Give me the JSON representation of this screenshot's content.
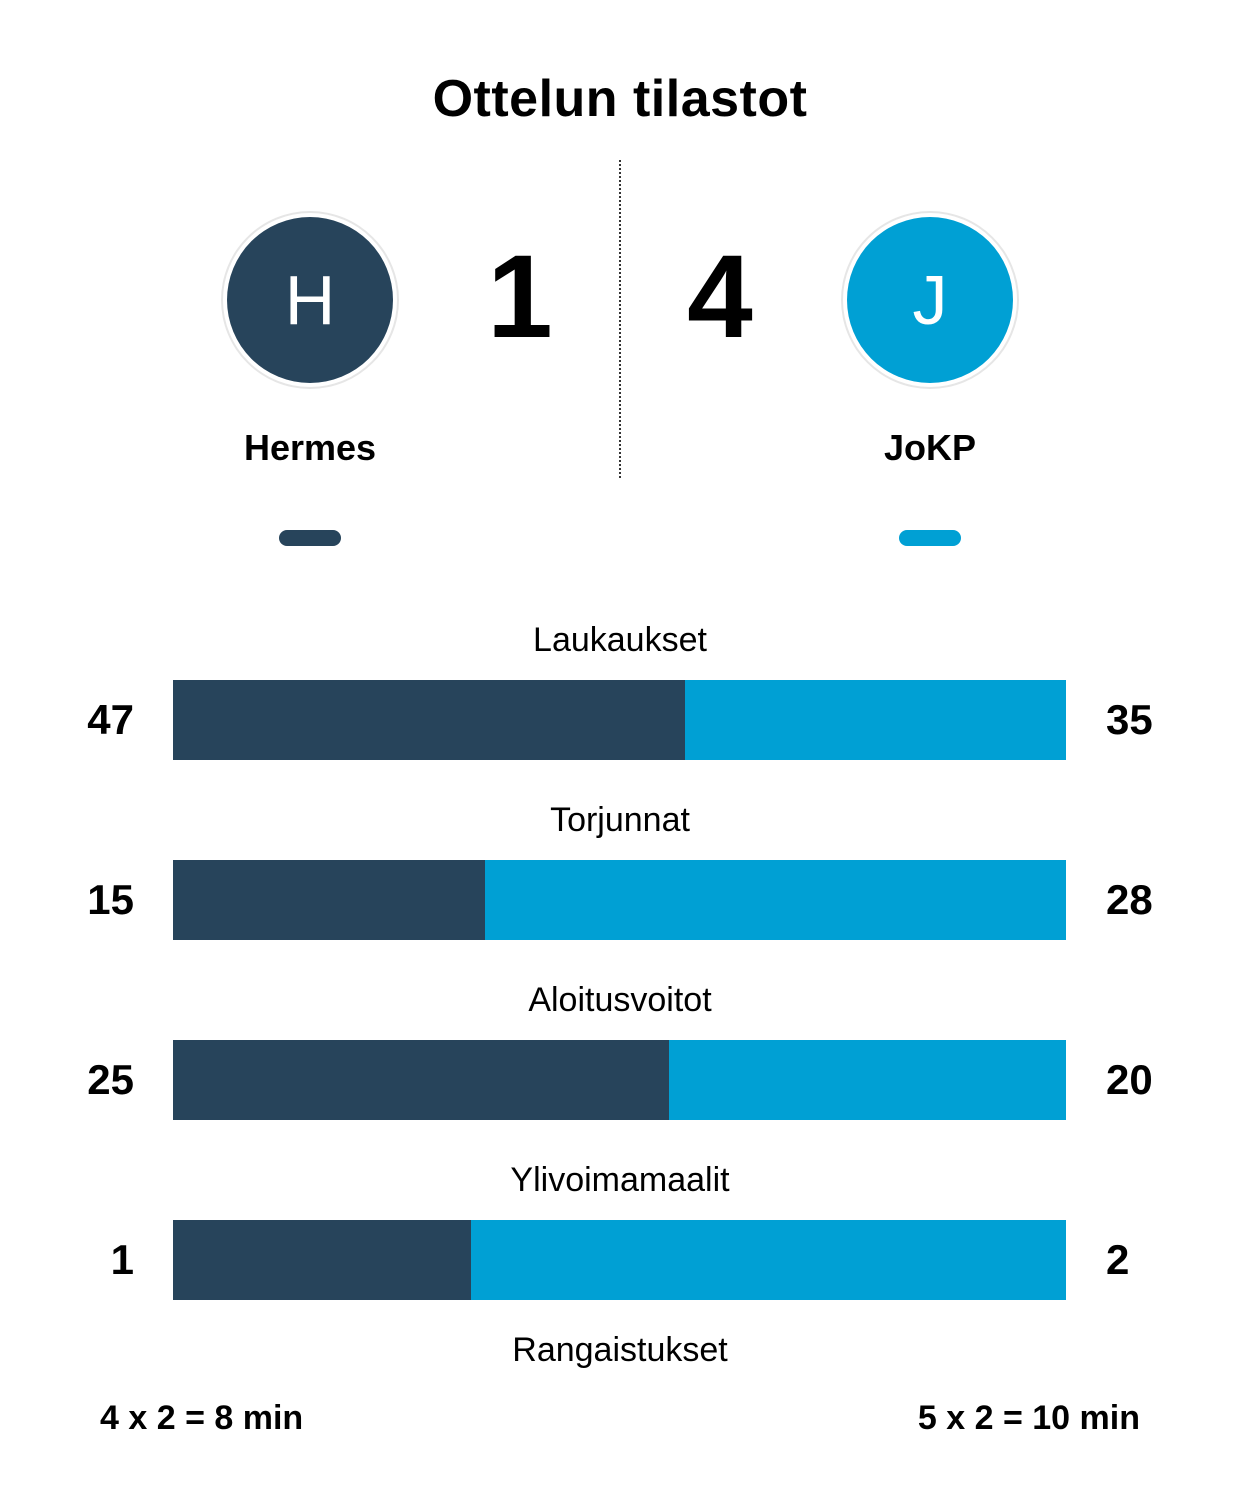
{
  "title": "Ottelun tilastot",
  "colors": {
    "home": "#27445b",
    "away": "#00a0d4"
  },
  "home": {
    "initial": "H",
    "name": "Hermes",
    "score": "1",
    "penalties": "4 x 2 = 8 min"
  },
  "away": {
    "initial": "J",
    "name": "JoKP",
    "score": "4",
    "penalties": "5 x 2 = 10 min"
  },
  "stats": [
    {
      "label": "Laukaukset",
      "home": 47,
      "away": 35
    },
    {
      "label": "Torjunnat",
      "home": 15,
      "away": 28
    },
    {
      "label": "Aloitusvoitot",
      "home": 25,
      "away": 20
    },
    {
      "label": "Ylivoimamaalit",
      "home": 1,
      "away": 2
    }
  ],
  "penalties_label": "Rangaistukset"
}
